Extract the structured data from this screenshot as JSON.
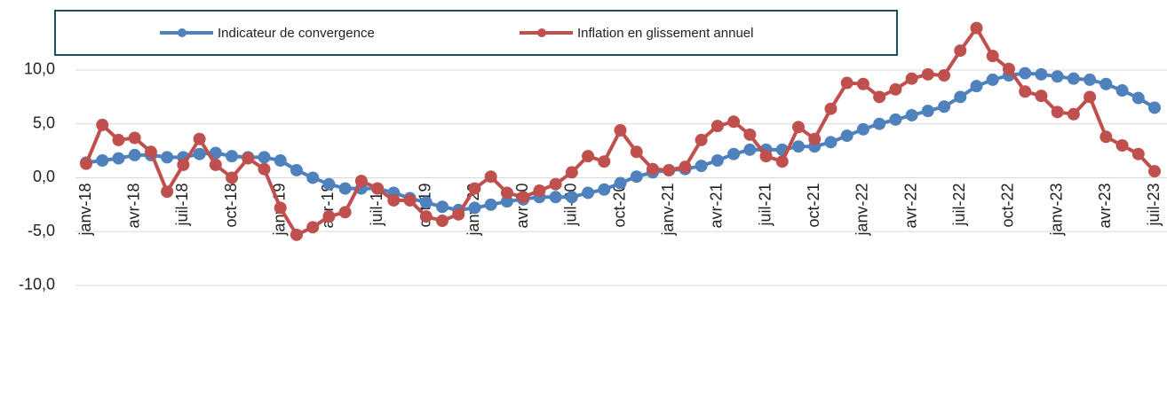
{
  "chart_data": {
    "type": "line",
    "categories": [
      "janv-18",
      null,
      null,
      "avr-18",
      null,
      null,
      "juil-18",
      null,
      null,
      "oct-18",
      null,
      null,
      "janv-19",
      null,
      null,
      "avr-19",
      null,
      null,
      "juil-19",
      null,
      null,
      "oct-19",
      null,
      null,
      "janv-20",
      null,
      null,
      "avr-20",
      null,
      null,
      "juil-20",
      null,
      null,
      "oct-20",
      null,
      null,
      "janv-21",
      null,
      null,
      "avr-21",
      null,
      null,
      "juil-21",
      null,
      null,
      "oct-21",
      null,
      null,
      "janv-22",
      null,
      null,
      "avr-22",
      null,
      null,
      "juil-22",
      null,
      null,
      "oct-22",
      null,
      null,
      "janv-23",
      null,
      null,
      "avr-23",
      null,
      null,
      "juil-23"
    ],
    "series": [
      {
        "name": "Indicateur de convergence",
        "color": "#4f81bd",
        "values": [
          1.4,
          1.6,
          1.8,
          2.1,
          2.1,
          1.9,
          1.9,
          2.2,
          2.3,
          2.0,
          1.9,
          1.9,
          1.6,
          0.7,
          0.0,
          -0.6,
          -1.0,
          -1.0,
          -1.0,
          -1.4,
          -1.9,
          -2.3,
          -2.7,
          -3.0,
          -2.8,
          -2.5,
          -2.2,
          -2.0,
          -1.8,
          -1.8,
          -1.8,
          -1.4,
          -1.1,
          -0.5,
          0.1,
          0.5,
          0.7,
          0.8,
          1.1,
          1.6,
          2.2,
          2.6,
          2.6,
          2.6,
          2.9,
          2.9,
          3.3,
          3.9,
          4.5,
          5.0,
          5.4,
          5.8,
          6.2,
          6.6,
          7.5,
          8.5,
          9.1,
          9.5,
          9.7,
          9.6,
          9.4,
          9.2,
          9.1,
          8.7,
          8.1,
          7.4,
          6.5
        ]
      },
      {
        "name": "Inflation en glissement annuel",
        "color": "#c0504d",
        "values": [
          1.3,
          4.9,
          3.5,
          3.7,
          2.4,
          -1.3,
          1.2,
          3.6,
          1.2,
          0.0,
          1.8,
          0.8,
          -2.8,
          -5.3,
          -4.6,
          -3.6,
          -3.2,
          -0.3,
          -1.0,
          -2.1,
          -2.1,
          -3.6,
          -4.0,
          -3.4,
          -1.0,
          0.1,
          -1.4,
          -1.8,
          -1.2,
          -0.6,
          0.5,
          2.0,
          1.5,
          4.4,
          2.4,
          0.8,
          0.7,
          1.0,
          3.5,
          4.8,
          5.2,
          4.0,
          2.0,
          1.5,
          4.7,
          3.6,
          6.4,
          8.8,
          8.7,
          7.5,
          8.2,
          9.2,
          9.6,
          9.5,
          11.8,
          13.9,
          11.3,
          10.1,
          8.0,
          7.6,
          6.1,
          5.9,
          7.5,
          3.8,
          3.0,
          2.2,
          0.6
        ]
      }
    ],
    "ylim": [
      -10.5,
      16.5
    ],
    "yticks": [
      {
        "value": -10,
        "label": "-10,0"
      },
      {
        "value": -5,
        "label": "-5,0"
      },
      {
        "value": 0,
        "label": "0,0"
      },
      {
        "value": 5,
        "label": "5,0"
      },
      {
        "value": 10,
        "label": "10,0"
      }
    ],
    "grid": true,
    "legend": "top"
  }
}
